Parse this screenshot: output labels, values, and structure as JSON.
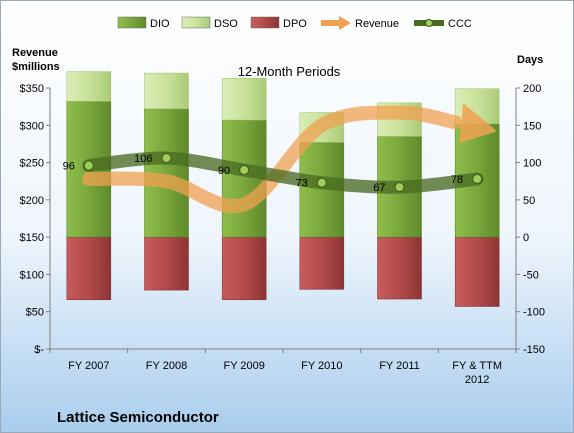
{
  "chart_data": {
    "type": "bar",
    "subtitle": "12-Month Periods",
    "company": "Lattice Semiconductor",
    "left_axis": {
      "title_line1": "Revenue",
      "title_line2": "$millions",
      "range": [
        0,
        350
      ],
      "ticks": [
        0,
        50,
        100,
        150,
        200,
        250,
        300,
        350
      ],
      "tick_labels": [
        "$-",
        "$50",
        "$100",
        "$150",
        "$200",
        "$250",
        "$300",
        "$350"
      ]
    },
    "right_axis": {
      "title": "Days",
      "range": [
        -150,
        200
      ],
      "ticks": [
        -150,
        -100,
        -50,
        0,
        50,
        100,
        150,
        200
      ],
      "tick_labels": [
        "-150",
        "-100",
        "-50",
        "0",
        "50",
        "100",
        "150",
        "200"
      ]
    },
    "categories": [
      "FY 2007",
      "FY 2008",
      "FY 2009",
      "FY 2010",
      "FY 2011",
      "FY & TTM\n2012"
    ],
    "series": [
      {
        "name": "DIO",
        "axis": "right",
        "kind": "stacked-bar",
        "color": "#7aa63c",
        "values": [
          182,
          172,
          157,
          127,
          135,
          152
        ]
      },
      {
        "name": "DSO",
        "axis": "right",
        "kind": "stacked-bar",
        "color": "#c9e29a",
        "values": [
          40,
          48,
          56,
          40,
          45,
          47
        ]
      },
      {
        "name": "DPO",
        "axis": "right",
        "kind": "negative-bar",
        "color": "#b24a4a",
        "values": [
          -84,
          -71,
          -84,
          -70,
          -83,
          -93
        ]
      },
      {
        "name": "Revenue",
        "axis": "left",
        "kind": "arrow-line",
        "color": "#f0a050",
        "values": [
          228,
          225,
          194,
          300,
          317,
          300
        ]
      },
      {
        "name": "CCC",
        "axis": "right",
        "kind": "line",
        "color": "#4a6b22",
        "values": [
          96,
          106,
          90,
          73,
          67,
          78
        ],
        "labels": [
          "96",
          "106",
          "90",
          "73",
          "67",
          "78"
        ]
      }
    ],
    "legend": {
      "position": "top",
      "items": [
        "DIO",
        "DSO",
        "DPO",
        "Revenue",
        "CCC"
      ]
    },
    "grid": false
  }
}
